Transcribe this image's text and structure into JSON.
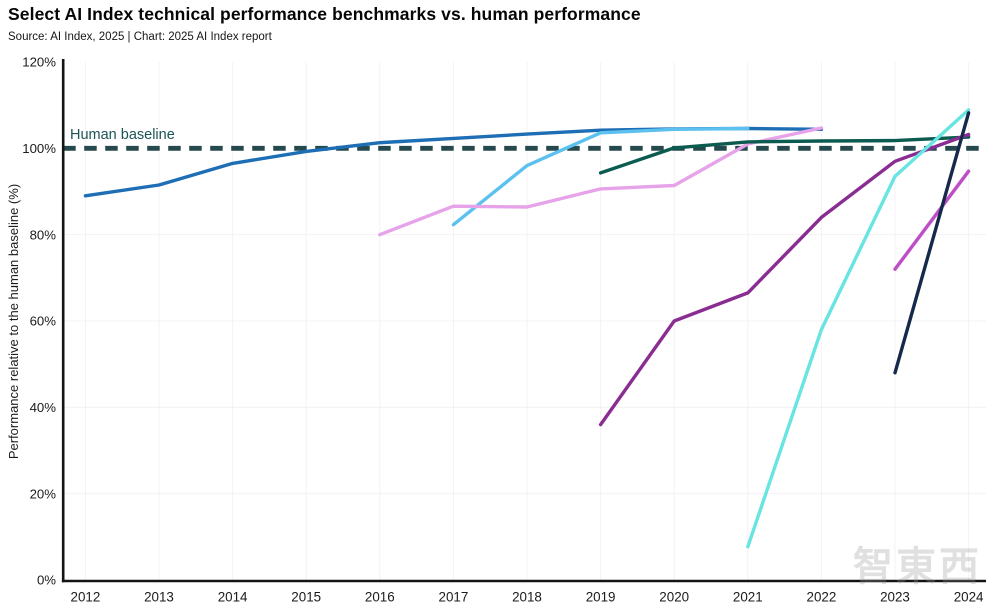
{
  "page": {
    "title": "Select AI Index technical performance benchmarks vs. human performance",
    "source_line": "Source: AI Index, 2025 | Chart: 2025 AI Index report",
    "watermark": "智東西"
  },
  "chart_data": {
    "type": "line",
    "title": "Select AI Index technical performance benchmarks vs. human performance",
    "xlabel": "",
    "ylabel": "Performance relative to the human baseline (%)",
    "xlim": [
      2011.7,
      2024.25
    ],
    "ylim": [
      0,
      120
    ],
    "grid": true,
    "legend": "none",
    "x_ticks": [
      2012,
      2013,
      2014,
      2015,
      2016,
      2017,
      2018,
      2019,
      2020,
      2021,
      2022,
      2023,
      2024
    ],
    "x_tick_labels": [
      "2012",
      "2013",
      "2014",
      "2015",
      "2016",
      "2017",
      "2018",
      "2019",
      "2020",
      "2021",
      "2022",
      "2023",
      "2024"
    ],
    "y_ticks": [
      0,
      20,
      40,
      60,
      80,
      100,
      120
    ],
    "y_tick_labels": [
      "0%",
      "20%",
      "40%",
      "60%",
      "80%",
      "100%",
      "120%"
    ],
    "y_gridlines": [
      20,
      40,
      60,
      80
    ],
    "baseline": {
      "label": "Human baseline",
      "value": 100,
      "style": "dashed",
      "color": "#25494d"
    },
    "colors": {
      "axis": "#141414",
      "tick_text": "#1b1b1b",
      "gridline": "#f5f0f4"
    },
    "series": [
      {
        "name": "medium-blue",
        "color": "#1e6eb5",
        "x": [
          2012,
          2013,
          2014,
          2015,
          2016,
          2017,
          2018,
          2019,
          2020,
          2021,
          2022
        ],
        "values": [
          89,
          91.5,
          96.5,
          99.3,
          101.3,
          102.3,
          103.3,
          104.2,
          104.5,
          104.6,
          104.4
        ]
      },
      {
        "name": "sky-blue",
        "color": "#5cc1ee",
        "x": [
          2017,
          2018,
          2019,
          2020,
          2021
        ],
        "values": [
          82.3,
          96,
          103.6,
          104.4,
          104.6
        ]
      },
      {
        "name": "light-plum",
        "color": "#e7a3e9",
        "x": [
          2016,
          2017,
          2018,
          2019,
          2020,
          2021,
          2022
        ],
        "values": [
          80,
          86.6,
          86.4,
          90.6,
          91.4,
          101,
          104.7
        ]
      },
      {
        "name": "dark-teal",
        "color": "#0c5b50",
        "x": [
          2019,
          2020,
          2021,
          2022,
          2023,
          2024
        ],
        "values": [
          94.3,
          100.1,
          101.5,
          101.7,
          101.8,
          102.6
        ]
      },
      {
        "name": "dark-purple",
        "color": "#8a2d92",
        "x": [
          2019,
          2020,
          2021,
          2022,
          2023,
          2024
        ],
        "values": [
          36,
          60,
          66.5,
          84,
          97,
          103.2
        ]
      },
      {
        "name": "bright-cyan",
        "color": "#68e4e2",
        "x": [
          2021,
          2022,
          2023,
          2024
        ],
        "values": [
          7.7,
          58,
          93.5,
          108.9
        ]
      },
      {
        "name": "orchid-magenta",
        "color": "#bf4ec6",
        "x": [
          2023,
          2024
        ],
        "values": [
          72,
          94.7
        ]
      },
      {
        "name": "dark-navy",
        "color": "#16294b",
        "x": [
          2023,
          2024
        ],
        "values": [
          48,
          108.2
        ]
      }
    ]
  }
}
